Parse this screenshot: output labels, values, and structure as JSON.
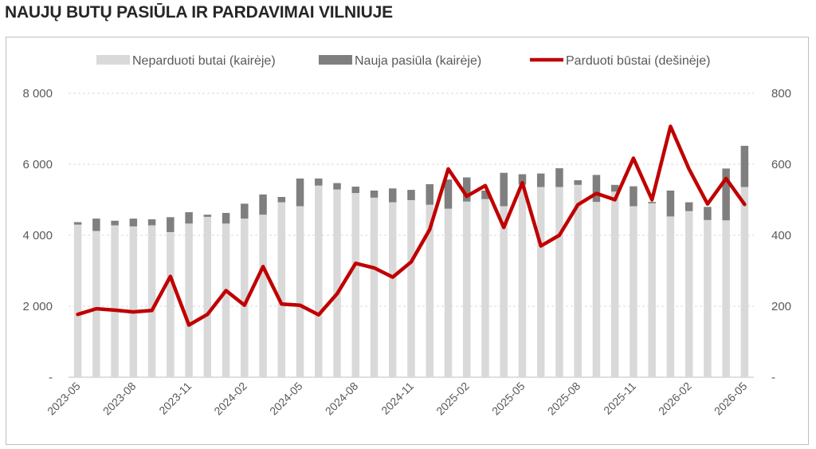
{
  "title": "NAUJŲ BUTŲ PASIŪLA IR PARDAVIMAI VILNIUJE",
  "chart_data": {
    "type": "bar+line",
    "legend_position": "top",
    "grid": "horizontal",
    "x": [
      "2023-05",
      "2023-06",
      "2023-07",
      "2023-08",
      "2023-09",
      "2023-10",
      "2023-11",
      "2023-12",
      "2024-01",
      "2024-02",
      "2024-03",
      "2024-04",
      "2024-05",
      "2024-06",
      "2024-07",
      "2024-08",
      "2024-09",
      "2024-10",
      "2024-11",
      "2024-12",
      "2025-01",
      "2025-02",
      "2025-03",
      "2025-04",
      "2025-05",
      "2025-06",
      "2025-07",
      "2025-08",
      "2025-09",
      "2025-10",
      "2025-11",
      "2025-12",
      "2026-01",
      "2026-02",
      "2026-03",
      "2026-04",
      "2026-05"
    ],
    "x_tick_labels": [
      "2023-05",
      "2023-08",
      "2023-11",
      "2024-02",
      "2024-05",
      "2024-08",
      "2024-11",
      "2025-02",
      "2025-05",
      "2025-08",
      "2025-11",
      "2026-02",
      "2026-05"
    ],
    "left_axis": {
      "ylim": [
        0,
        8000
      ],
      "ticks": [
        0,
        2000,
        4000,
        6000,
        8000
      ],
      "tick_labels": [
        "-",
        "2 000",
        "4 000",
        "6 000",
        "8 000"
      ]
    },
    "right_axis": {
      "ylim": [
        0,
        800
      ],
      "ticks": [
        0,
        200,
        400,
        600,
        800
      ],
      "tick_labels": [
        "-",
        "200",
        "400",
        "600",
        "800"
      ]
    },
    "series": [
      {
        "name": "Neparduoti butai (kairėje)",
        "type": "stacked-bar",
        "axis": "left",
        "color": "#d9d9d9",
        "values": [
          4300,
          4120,
          4280,
          4250,
          4280,
          4090,
          4330,
          4520,
          4330,
          4470,
          4580,
          4930,
          4820,
          5400,
          5290,
          5190,
          5060,
          4930,
          4990,
          4860,
          4750,
          4950,
          5020,
          4820,
          5430,
          5360,
          5360,
          5420,
          4940,
          5230,
          4820,
          4900,
          4530,
          4680,
          4430,
          4420,
          5360
        ]
      },
      {
        "name": "Nauja pasiūla (kairėje)",
        "type": "stacked-bar",
        "axis": "left",
        "color": "#7f7f7f",
        "values": [
          70,
          350,
          130,
          220,
          170,
          420,
          320,
          60,
          300,
          420,
          570,
          150,
          780,
          200,
          180,
          180,
          200,
          390,
          290,
          580,
          820,
          680,
          240,
          940,
          290,
          380,
          530,
          130,
          760,
          190,
          560,
          40,
          730,
          250,
          370,
          1460,
          1160
        ]
      },
      {
        "name": "Parduoti būstai (dešinėje)",
        "type": "line",
        "axis": "right",
        "color": "#c00000",
        "values": [
          177,
          193,
          189,
          184,
          188,
          284,
          147,
          177,
          244,
          203,
          312,
          206,
          203,
          176,
          235,
          321,
          308,
          282,
          325,
          416,
          587,
          510,
          540,
          422,
          548,
          370,
          400,
          486,
          518,
          500,
          617,
          500,
          707,
          587,
          488,
          560,
          487
        ]
      }
    ]
  }
}
